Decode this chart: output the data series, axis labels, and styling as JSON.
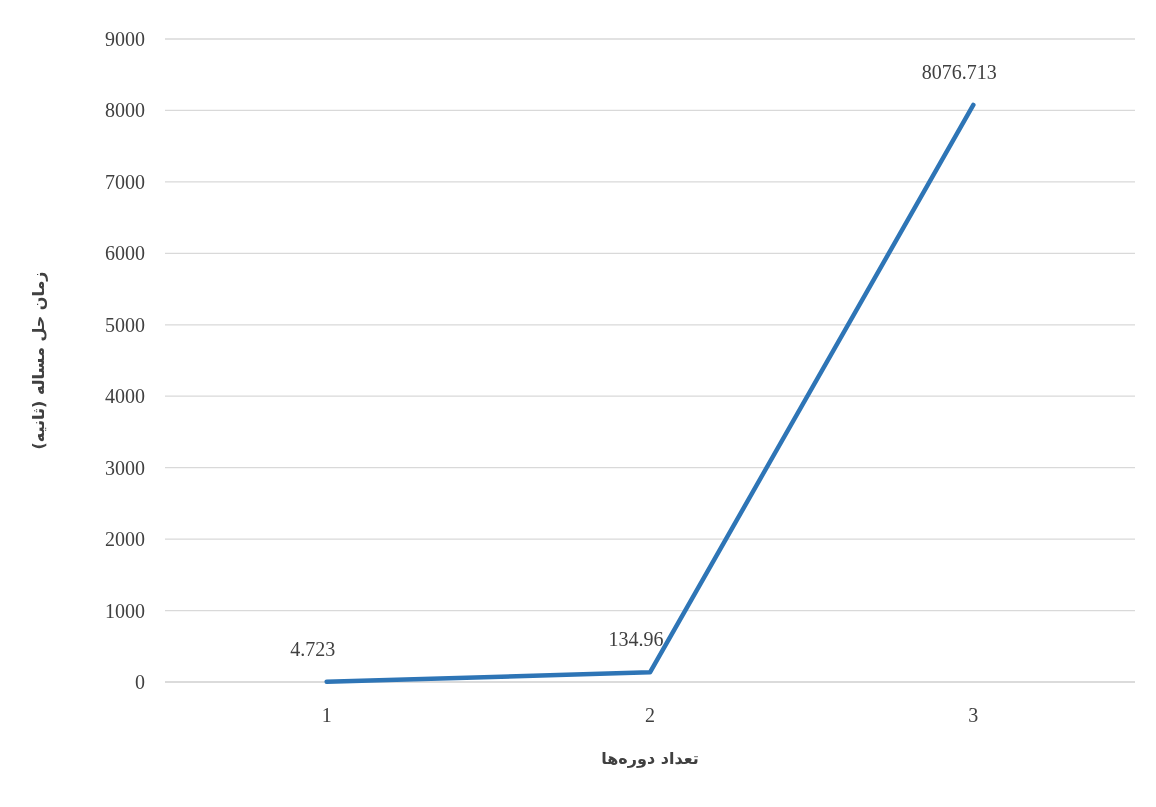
{
  "chart_data": {
    "type": "line",
    "xlabel": "تعداد دوره‌ها",
    "ylabel": "زمان حل مساله (ثانیه)",
    "categories": [
      "1",
      "2",
      "3"
    ],
    "series": [
      {
        "color": "#2e75b6",
        "values": [
          4.723,
          134.96,
          8076.713
        ]
      }
    ],
    "ylim": [
      0,
      9000
    ],
    "yticks": [
      0,
      1000,
      2000,
      3000,
      4000,
      5000,
      6000,
      7000,
      8000,
      9000
    ],
    "grid": "y",
    "marker": "none",
    "line_style": "solid",
    "data_labels": true
  }
}
